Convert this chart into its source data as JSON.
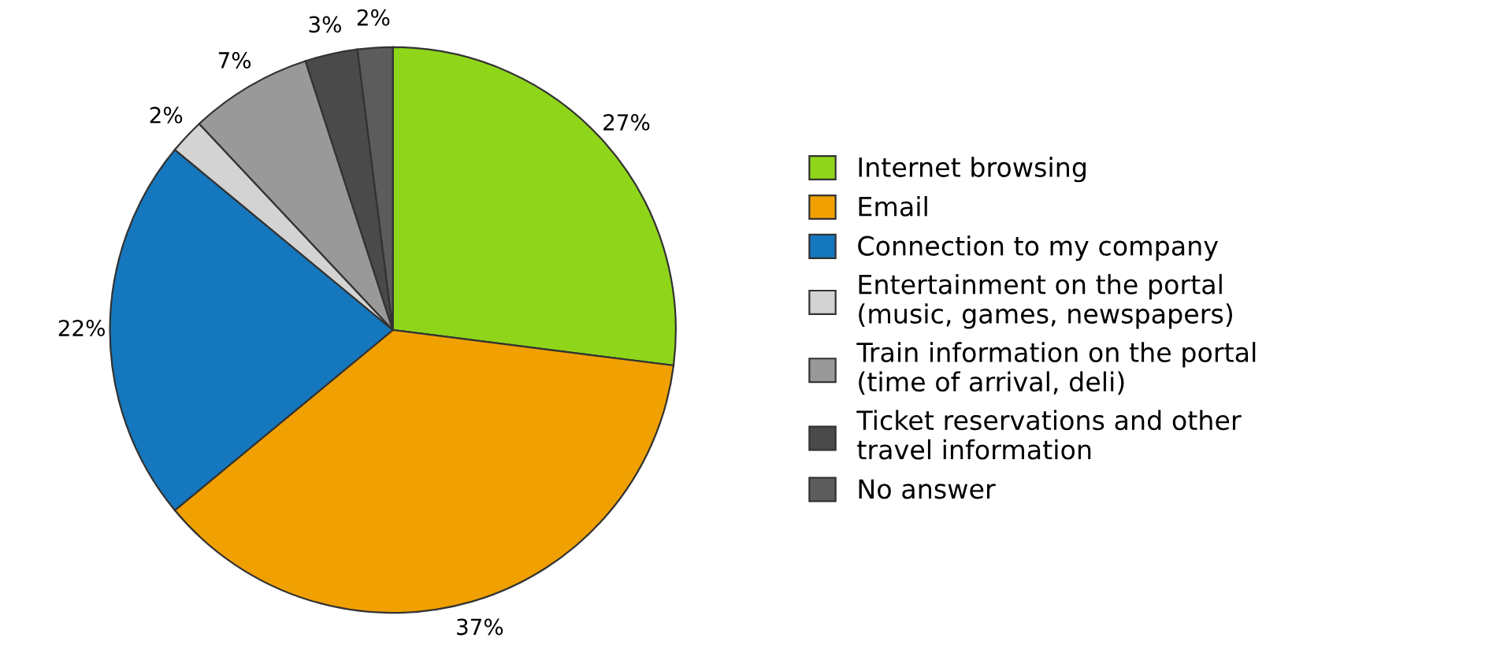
{
  "chart_data": {
    "type": "pie",
    "categories": [
      "Internet browsing",
      "Email",
      "Connection to my company",
      "Entertainment on the portal\n(music, games, newspapers)",
      "Train information on the portal\n(time of arrival, deli)",
      "Ticket reservations and other\ntravel information",
      "No answer"
    ],
    "values": [
      27,
      37,
      22,
      2,
      7,
      3,
      2
    ],
    "value_labels": [
      "27%",
      "37%",
      "22%",
      "2%",
      "7%",
      "3%",
      "2%"
    ],
    "colors": [
      "#8fd61a",
      "#f0a000",
      "#1577bd",
      "#d3d3d3",
      "#999999",
      "#4a4a4a",
      "#5c5c5c"
    ],
    "legend": "right"
  }
}
